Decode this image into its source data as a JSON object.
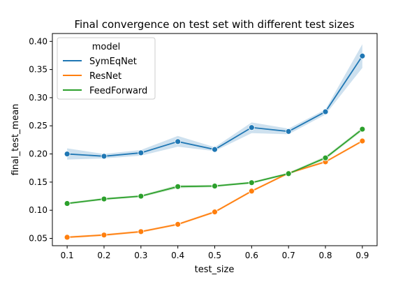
{
  "chart_data": {
    "type": "line",
    "title": "Final convergence on test set with different test sizes",
    "xlabel": "test_size",
    "ylabel": "final_test_mean",
    "x": [
      0.1,
      0.2,
      0.3,
      0.4,
      0.5,
      0.6,
      0.7,
      0.8,
      0.9
    ],
    "xticks": [
      "0.1",
      "0.2",
      "0.3",
      "0.4",
      "0.5",
      "0.6",
      "0.7",
      "0.8",
      "0.9"
    ],
    "yticks": [
      "0.05",
      "0.10",
      "0.15",
      "0.20",
      "0.25",
      "0.30",
      "0.35",
      "0.40"
    ],
    "ylim": [
      0.037,
      0.414
    ],
    "xlim": [
      0.06,
      0.94
    ],
    "grid": false,
    "legend": {
      "title": "model",
      "placement": "top-left"
    },
    "series": [
      {
        "name": "SymEqNet",
        "color": "#1f77b4",
        "values": [
          0.2,
          0.196,
          0.202,
          0.222,
          0.208,
          0.247,
          0.24,
          0.275,
          0.374
        ],
        "ci_low": [
          0.19,
          0.192,
          0.197,
          0.213,
          0.205,
          0.237,
          0.235,
          0.27,
          0.353
        ],
        "ci_high": [
          0.21,
          0.2,
          0.207,
          0.232,
          0.212,
          0.256,
          0.245,
          0.279,
          0.395
        ]
      },
      {
        "name": "ResNet",
        "color": "#ff7f0e",
        "values": [
          0.052,
          0.056,
          0.062,
          0.075,
          0.097,
          0.134,
          0.166,
          0.186,
          0.223
        ],
        "ci_low": [
          0.05,
          0.054,
          0.06,
          0.073,
          0.095,
          0.132,
          0.164,
          0.184,
          0.221
        ],
        "ci_high": [
          0.054,
          0.058,
          0.064,
          0.077,
          0.099,
          0.136,
          0.168,
          0.188,
          0.225
        ]
      },
      {
        "name": "FeedForward",
        "color": "#2ca02c",
        "values": [
          0.112,
          0.12,
          0.125,
          0.142,
          0.143,
          0.149,
          0.165,
          0.193,
          0.244
        ],
        "ci_low": [
          0.11,
          0.118,
          0.123,
          0.139,
          0.141,
          0.147,
          0.163,
          0.19,
          0.241
        ],
        "ci_high": [
          0.114,
          0.122,
          0.127,
          0.145,
          0.145,
          0.151,
          0.167,
          0.196,
          0.247
        ]
      }
    ]
  }
}
